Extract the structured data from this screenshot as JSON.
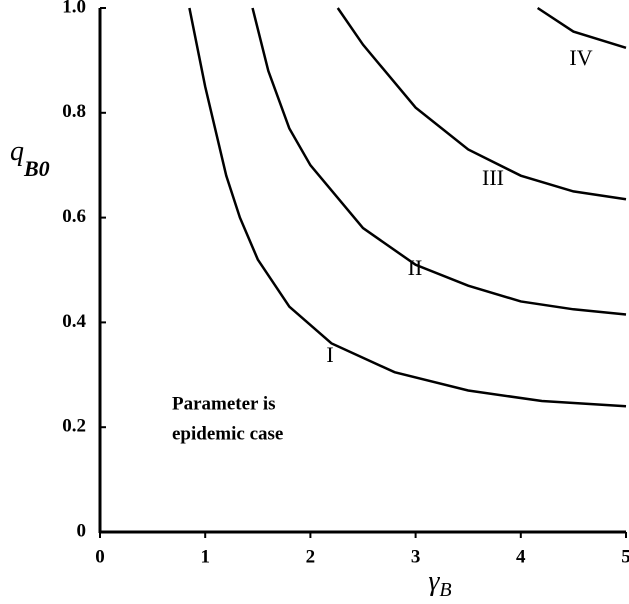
{
  "chart_data": {
    "type": "line",
    "xlabel": {
      "text": "γ",
      "subscript": "B"
    },
    "ylabel": {
      "text": "q",
      "subscript": "B0"
    },
    "annotation": [
      "Parameter is",
      "epidemic case"
    ],
    "xlim": [
      0,
      5
    ],
    "ylim": [
      0,
      1
    ],
    "xticks": [
      0,
      1,
      2,
      3,
      4,
      5
    ],
    "yticks": [
      0,
      0.2,
      0.4,
      0.6,
      0.8,
      {
        "value": 1,
        "label": "1.0"
      }
    ],
    "series": [
      {
        "name": "I",
        "color": "#000000",
        "x": [
          0.85,
          1.0,
          1.2,
          1.33,
          1.5,
          1.8,
          2.2,
          2.8,
          3.5,
          4.2,
          5
        ],
        "values": [
          1.0,
          0.85,
          0.68,
          0.6,
          0.52,
          0.43,
          0.36,
          0.305,
          0.27,
          0.25,
          0.24
        ]
      },
      {
        "name": "II",
        "color": "#000000",
        "x": [
          1.45,
          1.6,
          1.8,
          2.0,
          2.5,
          3.0,
          3.5,
          4.0,
          4.5,
          5
        ],
        "values": [
          1.0,
          0.88,
          0.77,
          0.7,
          0.58,
          0.51,
          0.47,
          0.44,
          0.425,
          0.415
        ]
      },
      {
        "name": "III",
        "color": "#000000",
        "x": [
          2.26,
          2.5,
          3.0,
          3.5,
          4.0,
          4.5,
          5
        ],
        "values": [
          1.0,
          0.93,
          0.81,
          0.73,
          0.68,
          0.65,
          0.635
        ]
      },
      {
        "name": "IV",
        "color": "#000000",
        "x": [
          4.16,
          4.5,
          5
        ],
        "values": [
          1.0,
          0.955,
          0.924
        ]
      }
    ]
  }
}
